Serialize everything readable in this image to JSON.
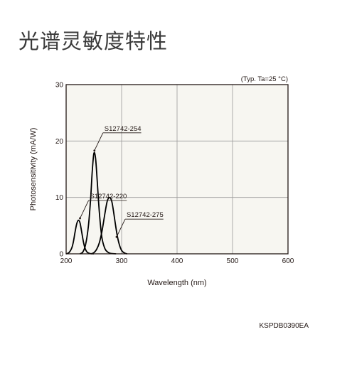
{
  "page": {
    "title": "光谱灵敏度特性",
    "figure_code": "KSPDB0390EA"
  },
  "chart_data": {
    "type": "line",
    "title": "",
    "condition": "(Typ. Ta=25 °C)",
    "xlabel": "Wavelength (nm)",
    "ylabel": "Photosensitivity (mA/W)",
    "xlim": [
      200,
      600
    ],
    "ylim": [
      0,
      30
    ],
    "xticks": [
      200,
      300,
      400,
      500,
      600
    ],
    "yticks": [
      0,
      10,
      20,
      30
    ],
    "grid": true,
    "background": "#f7f6f1",
    "line_color": "#000000",
    "series": [
      {
        "name": "S12742-220",
        "x": [
          200,
          205,
          210,
          213,
          216,
          219,
          222,
          225,
          228,
          231,
          234,
          237,
          240,
          244,
          250
        ],
        "y": [
          0,
          0.2,
          1.0,
          2.1,
          3.8,
          5.3,
          5.95,
          5.5,
          3.9,
          2.2,
          1.0,
          0.4,
          0.15,
          0.03,
          0
        ]
      },
      {
        "name": "S12742-254",
        "x": [
          225,
          230,
          235,
          240,
          244,
          247,
          250,
          253,
          256,
          259,
          262,
          265,
          270,
          275,
          280,
          290
        ],
        "y": [
          0,
          0.3,
          1.6,
          4.8,
          9.5,
          14.5,
          17.8,
          17.0,
          13.0,
          8.5,
          5.0,
          2.6,
          0.9,
          0.3,
          0.08,
          0
        ]
      },
      {
        "name": "S12742-275",
        "x": [
          245,
          250,
          255,
          260,
          265,
          270,
          274,
          278,
          282,
          285,
          288,
          292,
          296,
          300,
          305,
          310
        ],
        "y": [
          0,
          0.2,
          0.8,
          2.0,
          4.2,
          7.2,
          9.3,
          10.0,
          9.4,
          7.8,
          5.8,
          3.3,
          1.6,
          0.6,
          0.15,
          0
        ]
      }
    ],
    "annotations": [
      {
        "text": "S12742-254",
        "series": "S12742-254",
        "point": [
          251,
          18.3
        ]
      },
      {
        "text": "S12742-220",
        "series": "S12742-220",
        "point": [
          225,
          6.3
        ]
      },
      {
        "text": "S12742-275",
        "series": "S12742-275",
        "point": [
          291,
          3.0
        ]
      }
    ]
  }
}
